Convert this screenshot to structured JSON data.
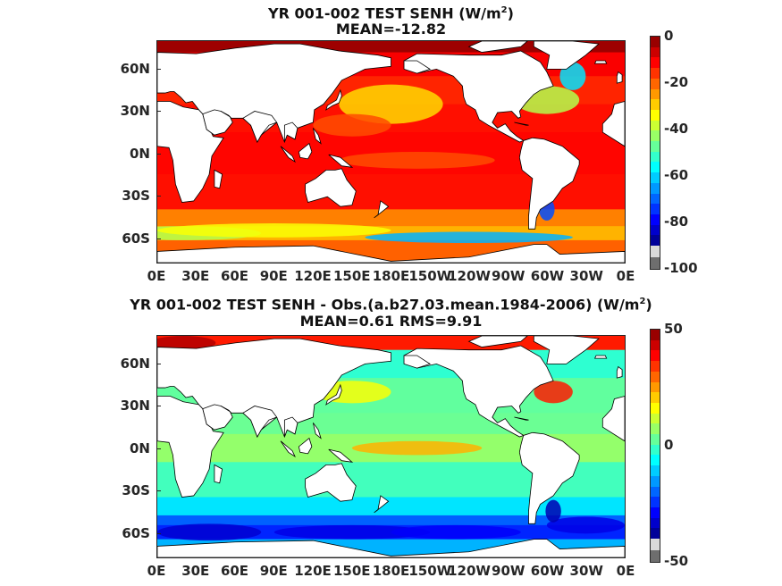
{
  "panels": [
    {
      "title_line1": "YR 001-002 TEST  SENH (W/m",
      "title_sup": "2",
      "title_close": ")",
      "title_line2": "MEAN=-12.82",
      "colorbar": {
        "ticks": [
          "0",
          "-20",
          "-40",
          "-60",
          "-80",
          "-100"
        ],
        "range": [
          -100,
          0
        ],
        "colormap": "jet"
      },
      "field_style": "mostly-negative"
    },
    {
      "title_line1": "YR 001-002 TEST SENH - Obs.(a.b27.03.mean.1984-2006) (W/m",
      "title_sup": "2",
      "title_close": ")",
      "title_line2": "MEAN=0.61 RMS=9.91",
      "colorbar": {
        "ticks": [
          "50",
          "0",
          "-50"
        ],
        "range": [
          -50,
          50
        ],
        "colormap": "jet"
      },
      "field_style": "anomaly"
    }
  ],
  "lat_labels": [
    "60N",
    "30N",
    "0N",
    "30S",
    "60S"
  ],
  "lon_labels": [
    "0E",
    "30E",
    "60E",
    "90E",
    "120E",
    "150E",
    "180E",
    "150W",
    "120W",
    "90W",
    "60W",
    "30W",
    "0E"
  ],
  "colors": {
    "land": "#ffffff",
    "missing": "#7f7f7f",
    "coast": "#000000"
  }
}
